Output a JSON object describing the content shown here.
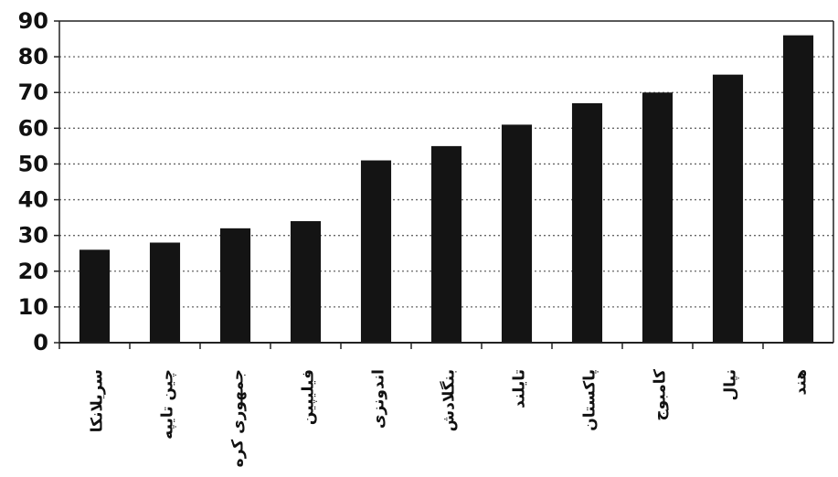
{
  "chart_data": {
    "type": "bar",
    "categories": [
      "سریلانکا",
      "چین تایپه",
      "جمهوری کره",
      "فیلیپین",
      "اندونزی",
      "بنگلادش",
      "تایلند",
      "پاکستان",
      "کامبوج",
      "نپال",
      "هند"
    ],
    "values": [
      26,
      28,
      32,
      34,
      51,
      55,
      61,
      67,
      70,
      75,
      86
    ],
    "title": "",
    "xlabel": "",
    "ylabel": "",
    "ylim": [
      0,
      90
    ],
    "yticks": [
      0,
      10,
      20,
      30,
      40,
      50,
      60,
      70,
      80,
      90
    ],
    "grid": true,
    "legend": "none",
    "colors": {
      "bar": "#141414",
      "axis": "#222222",
      "grid": "#666666",
      "text": "#111111"
    }
  }
}
